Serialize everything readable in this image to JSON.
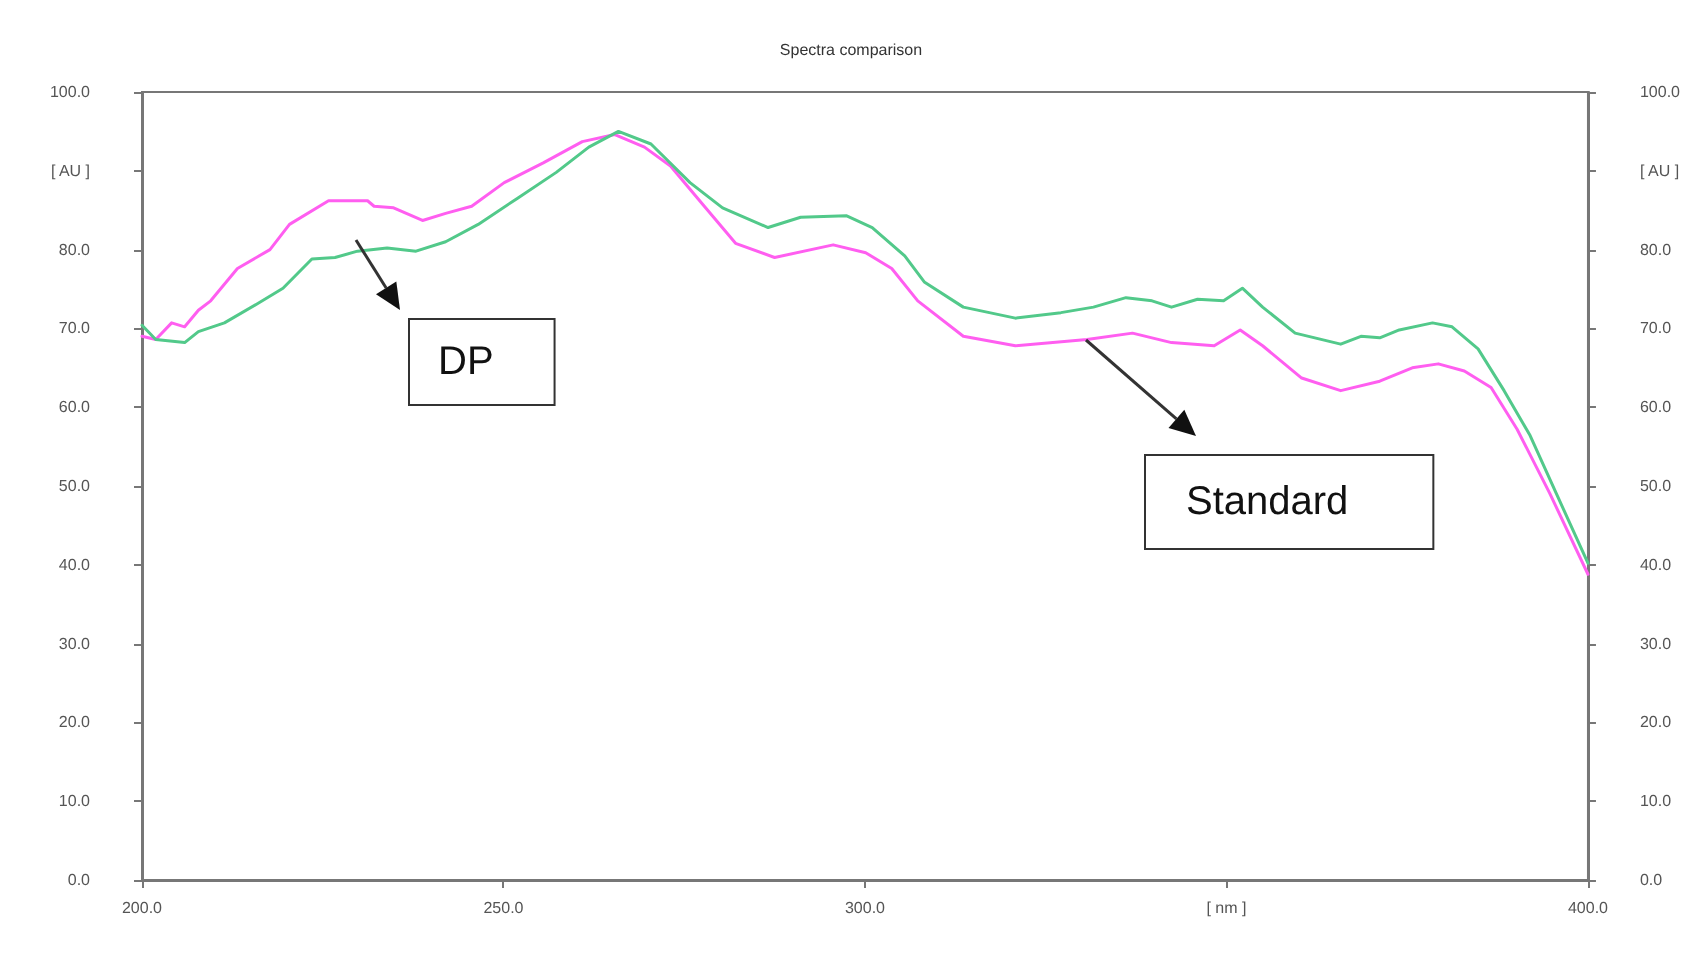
{
  "chart_data": {
    "type": "line",
    "title": "Spectra comparison",
    "xlim": [
      200,
      400
    ],
    "xticks": [
      {
        "value": 200,
        "label": "200.0"
      },
      {
        "value": 250,
        "label": "250.0"
      },
      {
        "value": 300,
        "label": "300.0"
      },
      {
        "value": 350,
        "label": "[ nm ]"
      },
      {
        "value": 400,
        "label": "400.0"
      }
    ],
    "ylim": [
      0,
      100
    ],
    "yticks": [
      {
        "value": 0,
        "label": "0.0"
      },
      {
        "value": 10,
        "label": "10.0"
      },
      {
        "value": 20,
        "label": "20.0"
      },
      {
        "value": 30,
        "label": "30.0"
      },
      {
        "value": 40,
        "label": "40.0"
      },
      {
        "value": 50,
        "label": "50.0"
      },
      {
        "value": 60,
        "label": "60.0"
      },
      {
        "value": 70,
        "label": "70.0"
      },
      {
        "value": 80,
        "label": "80.0"
      },
      {
        "value": 90,
        "label": "[ AU ]"
      },
      {
        "value": 100,
        "label": "100.0"
      }
    ],
    "y2lim": [
      0,
      100
    ],
    "y2ticks": [
      {
        "value": 0,
        "label": "0.0"
      },
      {
        "value": 10,
        "label": "10.0"
      },
      {
        "value": 20,
        "label": "20.0"
      },
      {
        "value": 30,
        "label": "30.0"
      },
      {
        "value": 40,
        "label": "40.0"
      },
      {
        "value": 50,
        "label": "50.0"
      },
      {
        "value": 60,
        "label": "60.0"
      },
      {
        "value": 70,
        "label": "70.0"
      },
      {
        "value": 80,
        "label": "80.0"
      },
      {
        "value": 90,
        "label": "[ AU ]"
      },
      {
        "value": 100,
        "label": "100.0"
      }
    ],
    "grid": false,
    "marker": "none",
    "line_style": "solid",
    "annotations": [
      "DP",
      "Standard"
    ],
    "series": [
      {
        "color": "#ff5ef0",
        "x": [
          200,
          201.9,
          204.1,
          205.9,
          207.8,
          209.5,
          213.2,
          217.7,
          220.4,
          225.8,
          231.2,
          232.1,
          234.8,
          238.8,
          242,
          245.6,
          250.1,
          255.5,
          260.9,
          265.4,
          269.5,
          273.1,
          277.6,
          282.1,
          287.5,
          295.6,
          300.1,
          303.7,
          307.3,
          313.6,
          320.8,
          330.7,
          337,
          342.4,
          348.3,
          351.9,
          355,
          360.4,
          365.8,
          371.2,
          375.7,
          379.3,
          382.9,
          386.6,
          390.2,
          394.7,
          400
        ],
        "values": [
          69,
          68.6,
          70.7,
          70.2,
          72.3,
          73.5,
          77.6,
          80,
          83.2,
          86.2,
          86.2,
          85.5,
          85.3,
          83.7,
          84.6,
          85.5,
          88.5,
          91,
          93.7,
          94.6,
          93,
          90.6,
          85.7,
          80.8,
          79,
          80.6,
          79.6,
          77.6,
          73.5,
          69,
          67.8,
          68.6,
          69.4,
          68.2,
          67.8,
          69.8,
          67.8,
          63.7,
          62.1,
          63.3,
          65,
          65.5,
          64.6,
          62.5,
          57.2,
          49.1,
          38.8
        ]
      },
      {
        "color": "#52c98a",
        "x": [
          200,
          201.9,
          205.9,
          207.8,
          211.4,
          215.9,
          219.5,
          223.5,
          226.7,
          229.8,
          233.9,
          237.9,
          242,
          246.5,
          251.9,
          257.3,
          261.8,
          265.9,
          270.4,
          275.8,
          280.3,
          286.6,
          291.1,
          297.4,
          301,
          305.5,
          308.2,
          313.6,
          320.8,
          327.1,
          331.6,
          336.1,
          339.7,
          342.4,
          346,
          349.6,
          352.2,
          355,
          359.5,
          365.8,
          368.6,
          371.2,
          373.9,
          378.5,
          381.2,
          384.8,
          388.4,
          392,
          395.6,
          400
        ],
        "values": [
          70.4,
          68.6,
          68.2,
          69.6,
          70.7,
          73.1,
          75.1,
          78.8,
          79,
          79.8,
          80.2,
          79.8,
          81,
          83.2,
          86.5,
          89.8,
          93,
          95,
          93.4,
          88.5,
          85.3,
          82.8,
          84.1,
          84.3,
          82.8,
          79.2,
          75.9,
          72.7,
          71.3,
          72,
          72.7,
          73.9,
          73.5,
          72.7,
          73.7,
          73.5,
          75.1,
          72.7,
          69.4,
          68,
          69,
          68.8,
          69.8,
          70.7,
          70.2,
          67.4,
          62.1,
          56.4,
          49.1,
          40.2
        ]
      }
    ]
  }
}
